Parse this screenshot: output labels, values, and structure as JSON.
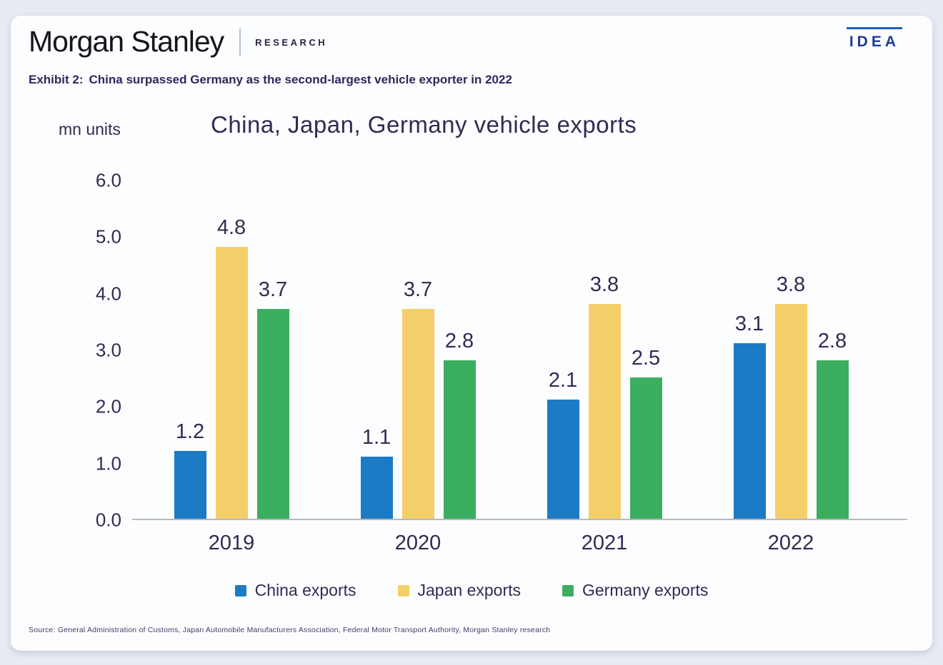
{
  "page": {
    "background_color": "#e7ecf3",
    "card_color": "#fcfdff"
  },
  "header": {
    "brand": "Morgan Stanley",
    "division": "RESEARCH",
    "idea_logo": "IDEA",
    "idea_text_color": "#1c3e92",
    "idea_bar_color": "#1d5ec0"
  },
  "exhibit": {
    "label": "Exhibit 2:",
    "title": "China surpassed Germany as the second-largest vehicle exporter in 2022"
  },
  "chart_data": {
    "type": "bar",
    "title": "China, Japan, Germany vehicle exports",
    "ylabel": "mn units",
    "xlabel": "",
    "categories": [
      "2019",
      "2020",
      "2021",
      "2022"
    ],
    "series": [
      {
        "name": "China exports",
        "color": "#1b7bc4",
        "values": [
          1.2,
          1.1,
          2.1,
          3.1
        ]
      },
      {
        "name": "Japan exports",
        "color": "#f2cf69",
        "values": [
          4.8,
          3.7,
          3.8,
          3.8
        ]
      },
      {
        "name": "Germany exports",
        "color": "#3bae5f",
        "values": [
          3.7,
          2.8,
          2.5,
          2.8
        ]
      }
    ],
    "y_ticks": [
      "6.0",
      "5.0",
      "4.0",
      "3.0",
      "2.0",
      "1.0",
      "0.0"
    ],
    "ylim": [
      0,
      6
    ],
    "grid": false,
    "legend_position": "bottom",
    "value_labels_shown": true
  },
  "source": "Source: General Administration of Customs, Japan Automobile Manufacturers Association, Federal Motor Transport Authority, Morgan Stanley research"
}
